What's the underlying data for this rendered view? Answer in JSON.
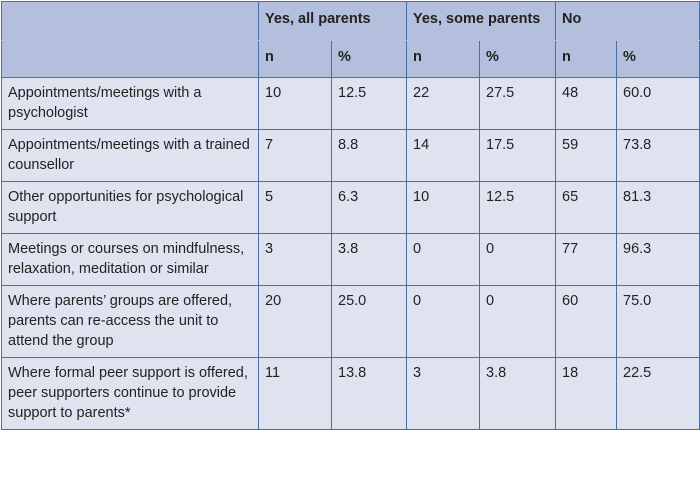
{
  "table": {
    "group_headers": [
      "Yes, all parents",
      "Yes, some parents",
      "No"
    ],
    "sub_headers": [
      "n",
      "%",
      "n",
      "%",
      "n",
      "%"
    ],
    "rows": [
      {
        "label": "Appointments/meetings with a psychologist",
        "values": [
          "10",
          "12.5",
          "22",
          "27.5",
          "48",
          "60.0"
        ]
      },
      {
        "label": "Appointments/meetings with a trained counsellor",
        "values": [
          "7",
          "8.8",
          "14",
          "17.5",
          "59",
          "73.8"
        ]
      },
      {
        "label": "Other opportunities for psychological support",
        "values": [
          "5",
          "6.3",
          "10",
          "12.5",
          "65",
          "81.3"
        ]
      },
      {
        "label": "Meetings or courses on mindfulness, relaxation, meditation or similar",
        "values": [
          "3",
          "3.8",
          "0",
          "0",
          "77",
          "96.3"
        ]
      },
      {
        "label": "Where parents’ groups are offered, parents can re-access the unit to attend the group",
        "values": [
          "20",
          "25.0",
          "0",
          "0",
          "60",
          "75.0"
        ]
      },
      {
        "label": "Where formal peer support is offered, peer supporters continue to provide support to parents*",
        "values": [
          "11",
          "13.8",
          "3",
          "3.8",
          "18",
          "22.5"
        ]
      }
    ]
  },
  "colors": {
    "header_background": "#b3bfdc",
    "body_background": "#dfe3f0",
    "border": "#4a6fa8"
  }
}
